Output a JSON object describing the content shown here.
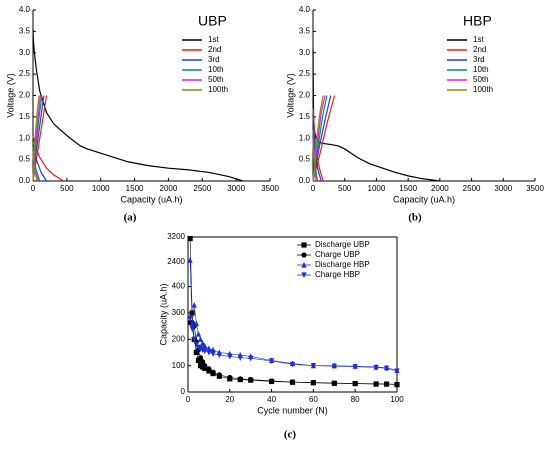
{
  "chart_data": [
    {
      "type": "line",
      "label": "(a)",
      "annotation": "UBP",
      "xlabel": "Capacity (uA.h)",
      "ylabel": "Voltage (V)",
      "xlim": [
        0,
        3500
      ],
      "xticks": [
        0,
        500,
        1000,
        1500,
        2000,
        2500,
        3000,
        3500
      ],
      "ylim": [
        0,
        4.0
      ],
      "yticks": [
        {
          "value": 0,
          "label": "0.0"
        },
        0.5,
        {
          "value": 1,
          "label": "1.0"
        },
        1.5,
        {
          "value": 2,
          "label": "2.0"
        },
        2.5,
        {
          "value": 3,
          "label": "3.0"
        },
        3.5,
        {
          "value": 4,
          "label": "4.0"
        }
      ],
      "series": [
        {
          "name": "1st",
          "color": "#000000",
          "x": [
            0,
            5,
            20,
            50,
            100,
            200,
            300,
            400,
            550,
            700,
            800,
            900,
            1100,
            1400,
            1700,
            2000,
            2300,
            2600,
            2900,
            3100
          ],
          "values": [
            3.55,
            3.3,
            3.0,
            2.6,
            2.1,
            1.6,
            1.35,
            1.2,
            1.0,
            0.82,
            0.75,
            0.7,
            0.6,
            0.45,
            0.36,
            0.3,
            0.26,
            0.2,
            0.1,
            0
          ]
        },
        {
          "name": "2nd",
          "color": "#e8211d",
          "x": [
            0,
            30,
            100,
            200,
            300,
            450,
            null,
            0,
            50,
            120,
            200
          ],
          "values": [
            1.05,
            0.85,
            0.55,
            0.3,
            0.15,
            0,
            null,
            0,
            0.5,
            1.2,
            2.0
          ]
        },
        {
          "name": "3rd",
          "color": "#1f3fd0",
          "x": [
            0,
            50,
            120,
            200,
            null,
            0,
            40,
            100,
            160
          ],
          "values": [
            0.9,
            0.5,
            0.2,
            0,
            null,
            0,
            0.6,
            1.3,
            2.0
          ]
        },
        {
          "name": "10th",
          "color": "#0a8a6a",
          "x": [
            0,
            40,
            100,
            null,
            0,
            40,
            90,
            130
          ],
          "values": [
            0.8,
            0.3,
            0,
            null,
            0,
            0.8,
            1.5,
            2.0
          ]
        },
        {
          "name": "50th",
          "color": "#e020d0",
          "x": [
            0,
            30,
            80,
            null,
            0,
            40,
            80,
            110
          ],
          "values": [
            0.7,
            0.25,
            0,
            null,
            0,
            0.9,
            1.6,
            2.0
          ]
        },
        {
          "name": "100th",
          "color": "#8a8a10",
          "x": [
            0,
            30,
            60,
            null,
            0,
            30,
            60,
            90
          ],
          "values": [
            0.6,
            0.2,
            0,
            null,
            0,
            1.0,
            1.6,
            2.0
          ]
        }
      ]
    },
    {
      "type": "line",
      "label": "(b)",
      "annotation": "HBP",
      "xlabel": "Capacity (uA.h)",
      "ylabel": "Voltage (V)",
      "xlim": [
        0,
        3500
      ],
      "xticks": [
        0,
        500,
        1000,
        1500,
        2000,
        2500,
        3000,
        3500
      ],
      "ylim": [
        0,
        4.0
      ],
      "yticks": [
        {
          "value": 0,
          "label": "0.0"
        },
        0.5,
        {
          "value": 1,
          "label": "1.0"
        },
        1.5,
        {
          "value": 2,
          "label": "2.0"
        },
        2.5,
        {
          "value": 3,
          "label": "3.0"
        },
        3.5,
        {
          "value": 4,
          "label": "4.0"
        }
      ],
      "series": [
        {
          "name": "1st",
          "color": "#000000",
          "x": [
            0,
            5,
            10,
            20,
            50,
            100,
            200,
            300,
            400,
            500,
            700,
            900,
            1100,
            1300,
            1500,
            1700,
            1900,
            2000
          ],
          "values": [
            3.1,
            2.0,
            1.5,
            1.2,
            1.0,
            0.9,
            0.87,
            0.85,
            0.82,
            0.75,
            0.55,
            0.4,
            0.3,
            0.2,
            0.12,
            0.06,
            0.02,
            0
          ]
        },
        {
          "name": "2nd",
          "color": "#e8211d",
          "x": [
            0,
            40,
            100,
            160,
            null,
            0,
            120,
            230,
            340
          ],
          "values": [
            1.7,
            0.8,
            0.3,
            0,
            null,
            0,
            0.7,
            1.4,
            2.0
          ]
        },
        {
          "name": "3rd",
          "color": "#1f3fd0",
          "x": [
            0,
            30,
            80,
            130,
            null,
            0,
            100,
            200,
            280
          ],
          "values": [
            1.5,
            0.7,
            0.25,
            0,
            null,
            0,
            0.8,
            1.5,
            2.0
          ]
        },
        {
          "name": "10th",
          "color": "#0a8a6a",
          "x": [
            0,
            30,
            70,
            null,
            0,
            80,
            150,
            220
          ],
          "values": [
            1.2,
            0.4,
            0,
            null,
            0,
            0.8,
            1.5,
            2.0
          ]
        },
        {
          "name": "50th",
          "color": "#e020d0",
          "x": [
            0,
            25,
            60,
            null,
            0,
            70,
            130,
            190
          ],
          "values": [
            1.0,
            0.35,
            0,
            null,
            0,
            0.9,
            1.6,
            2.0
          ]
        },
        {
          "name": "100th",
          "color": "#8a8a10",
          "x": [
            0,
            20,
            50,
            null,
            0,
            50,
            110,
            160
          ],
          "values": [
            0.9,
            0.3,
            0,
            null,
            0,
            0.9,
            1.6,
            2.0
          ]
        }
      ]
    },
    {
      "type": "scatter",
      "label": "(c)",
      "xlabel": "Cycle number (N)",
      "ylabel": "Capacity (uA.h)",
      "frame": true,
      "xlim": [
        0,
        100
      ],
      "xticks": [
        0,
        20,
        40,
        60,
        80,
        100
      ],
      "ylim": [
        0,
        3200
      ],
      "ybreak": [
        400,
        2400
      ],
      "yticks": [
        0,
        100,
        200,
        300,
        400,
        2400,
        3200
      ],
      "x": [
        1,
        2,
        3,
        4,
        5,
        6,
        7,
        8,
        10,
        12,
        15,
        20,
        25,
        30,
        40,
        50,
        60,
        70,
        80,
        90,
        95,
        100
      ],
      "series": [
        {
          "name": "Discharge UBP",
          "color": "#000000",
          "marker": "square",
          "values": [
            3150,
            300,
            200,
            150,
            120,
            100,
            95,
            90,
            80,
            70,
            60,
            50,
            47,
            45,
            40,
            37,
            35,
            33,
            32,
            30,
            30,
            28
          ]
        },
        {
          "name": "Charge UBP",
          "color": "#000000",
          "marker": "circle",
          "values": [
            440,
            440,
            250,
            190,
            160,
            130,
            115,
            100,
            88,
            75,
            65,
            55,
            50,
            47,
            42,
            38,
            36,
            34,
            32,
            31,
            30,
            29
          ]
        },
        {
          "name": "Discharge HBP",
          "color": "#1f2fd8",
          "marker": "triangle-up",
          "values": [
            2450,
            410,
            330,
            260,
            220,
            200,
            185,
            175,
            165,
            160,
            150,
            145,
            140,
            135,
            120,
            108,
            100,
            100,
            98,
            95,
            92,
            82
          ]
        },
        {
          "name": "Charge HBP",
          "color": "#1f2fd8",
          "marker": "triangle-down",
          "values": [
            280,
            240,
            200,
            180,
            170,
            165,
            160,
            155,
            150,
            145,
            140,
            135,
            130,
            128,
            118,
            105,
            100,
            98,
            96,
            93,
            90,
            80
          ]
        }
      ]
    }
  ]
}
